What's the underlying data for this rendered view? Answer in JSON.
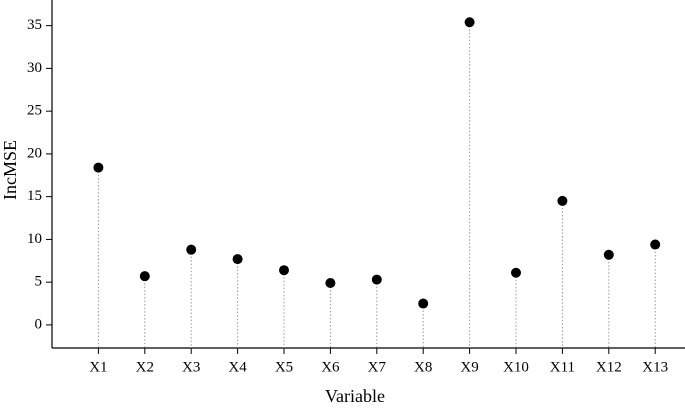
{
  "chart_data": {
    "type": "dot",
    "x_label": "Variable",
    "y_label": "IncMSE",
    "categories": [
      "X1",
      "X2",
      "X3",
      "X4",
      "X5",
      "X6",
      "X7",
      "X8",
      "X9",
      "X10",
      "X11",
      "X12",
      "X13"
    ],
    "values": [
      18.4,
      5.7,
      8.8,
      7.7,
      6.4,
      4.9,
      5.3,
      2.5,
      35.4,
      6.1,
      14.5,
      8.2,
      9.4
    ],
    "color": "#000000",
    "ylim": [
      -2.7,
      38
    ],
    "yticks": [
      0,
      5,
      10,
      15,
      20,
      25,
      30,
      35
    ]
  }
}
